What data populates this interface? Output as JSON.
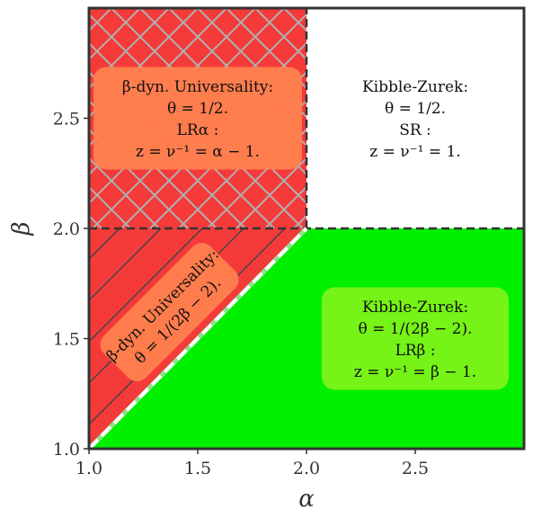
{
  "chart_data": {
    "type": "area",
    "title": "",
    "xlabel": "α",
    "ylabel": "β",
    "xlim": [
      1.0,
      3.0
    ],
    "ylim": [
      1.0,
      3.0
    ],
    "xticks": [
      "1.0",
      "1.5",
      "2.0",
      "2.5"
    ],
    "yticks": [
      "1.0",
      "1.5",
      "2.0",
      "2.5"
    ],
    "grid": false,
    "colors": {
      "red": "#f53a3a",
      "green": "#00f000",
      "orange_box": "#ff7f4e",
      "lime_box": "#7cf218",
      "hatch_cross": "#b0b0b0",
      "hatch_diag": "#444444",
      "dashed_line": "#333333",
      "diagonal_dash": "#ffffff"
    },
    "regions": [
      {
        "name": "LR_alpha",
        "color": "red",
        "hatch": "crosshatch",
        "polygon": [
          [
            1.0,
            2.0
          ],
          [
            2.0,
            2.0
          ],
          [
            2.0,
            3.0
          ],
          [
            1.0,
            3.0
          ]
        ]
      },
      {
        "name": "beta_dyn_lower",
        "color": "red",
        "hatch": "diagonal",
        "polygon": [
          [
            1.0,
            1.0
          ],
          [
            2.0,
            2.0
          ],
          [
            1.0,
            2.0
          ]
        ]
      },
      {
        "name": "LR_beta",
        "color": "green",
        "hatch": "none",
        "polygon": [
          [
            1.0,
            1.0
          ],
          [
            3.0,
            1.0
          ],
          [
            3.0,
            2.0
          ],
          [
            2.0,
            2.0
          ]
        ]
      },
      {
        "name": "SR",
        "color": "white",
        "hatch": "none",
        "polygon": [
          [
            2.0,
            2.0
          ],
          [
            3.0,
            2.0
          ],
          [
            3.0,
            3.0
          ],
          [
            2.0,
            3.0
          ]
        ]
      }
    ],
    "boundaries": [
      {
        "style": "dashed",
        "color": "dashed_line",
        "points": [
          [
            1.0,
            2.0
          ],
          [
            3.0,
            2.0
          ]
        ]
      },
      {
        "style": "dashed",
        "color": "dashed_line",
        "points": [
          [
            2.0,
            2.0
          ],
          [
            2.0,
            3.0
          ]
        ]
      },
      {
        "style": "dashed",
        "color": "diagonal_dash",
        "points": [
          [
            1.0,
            1.0
          ],
          [
            2.0,
            2.0
          ]
        ]
      }
    ],
    "annotations": [
      {
        "box": "orange_box",
        "x": 1.5,
        "y": 2.5,
        "lines": [
          "β-dyn. Universality:",
          "θ = 1/2.",
          "LRα :",
          "z = ν⁻¹ = α − 1."
        ]
      },
      {
        "box": "none",
        "x": 2.5,
        "y": 2.5,
        "lines": [
          "Kibble-Zurek:",
          "θ = 1/2.",
          "SR :",
          "z = ν⁻¹ = 1."
        ]
      },
      {
        "box": "orange_box",
        "x": 1.37,
        "y": 1.62,
        "rotate": -45,
        "lines": [
          "β-dyn. Universality:",
          "θ = 1/(2β − 2)."
        ]
      },
      {
        "box": "lime_box",
        "x": 2.5,
        "y": 1.5,
        "lines": [
          "Kibble-Zurek:",
          "θ = 1/(2β − 2).",
          "LRβ :",
          "z = ν⁻¹ = β − 1."
        ]
      }
    ]
  }
}
